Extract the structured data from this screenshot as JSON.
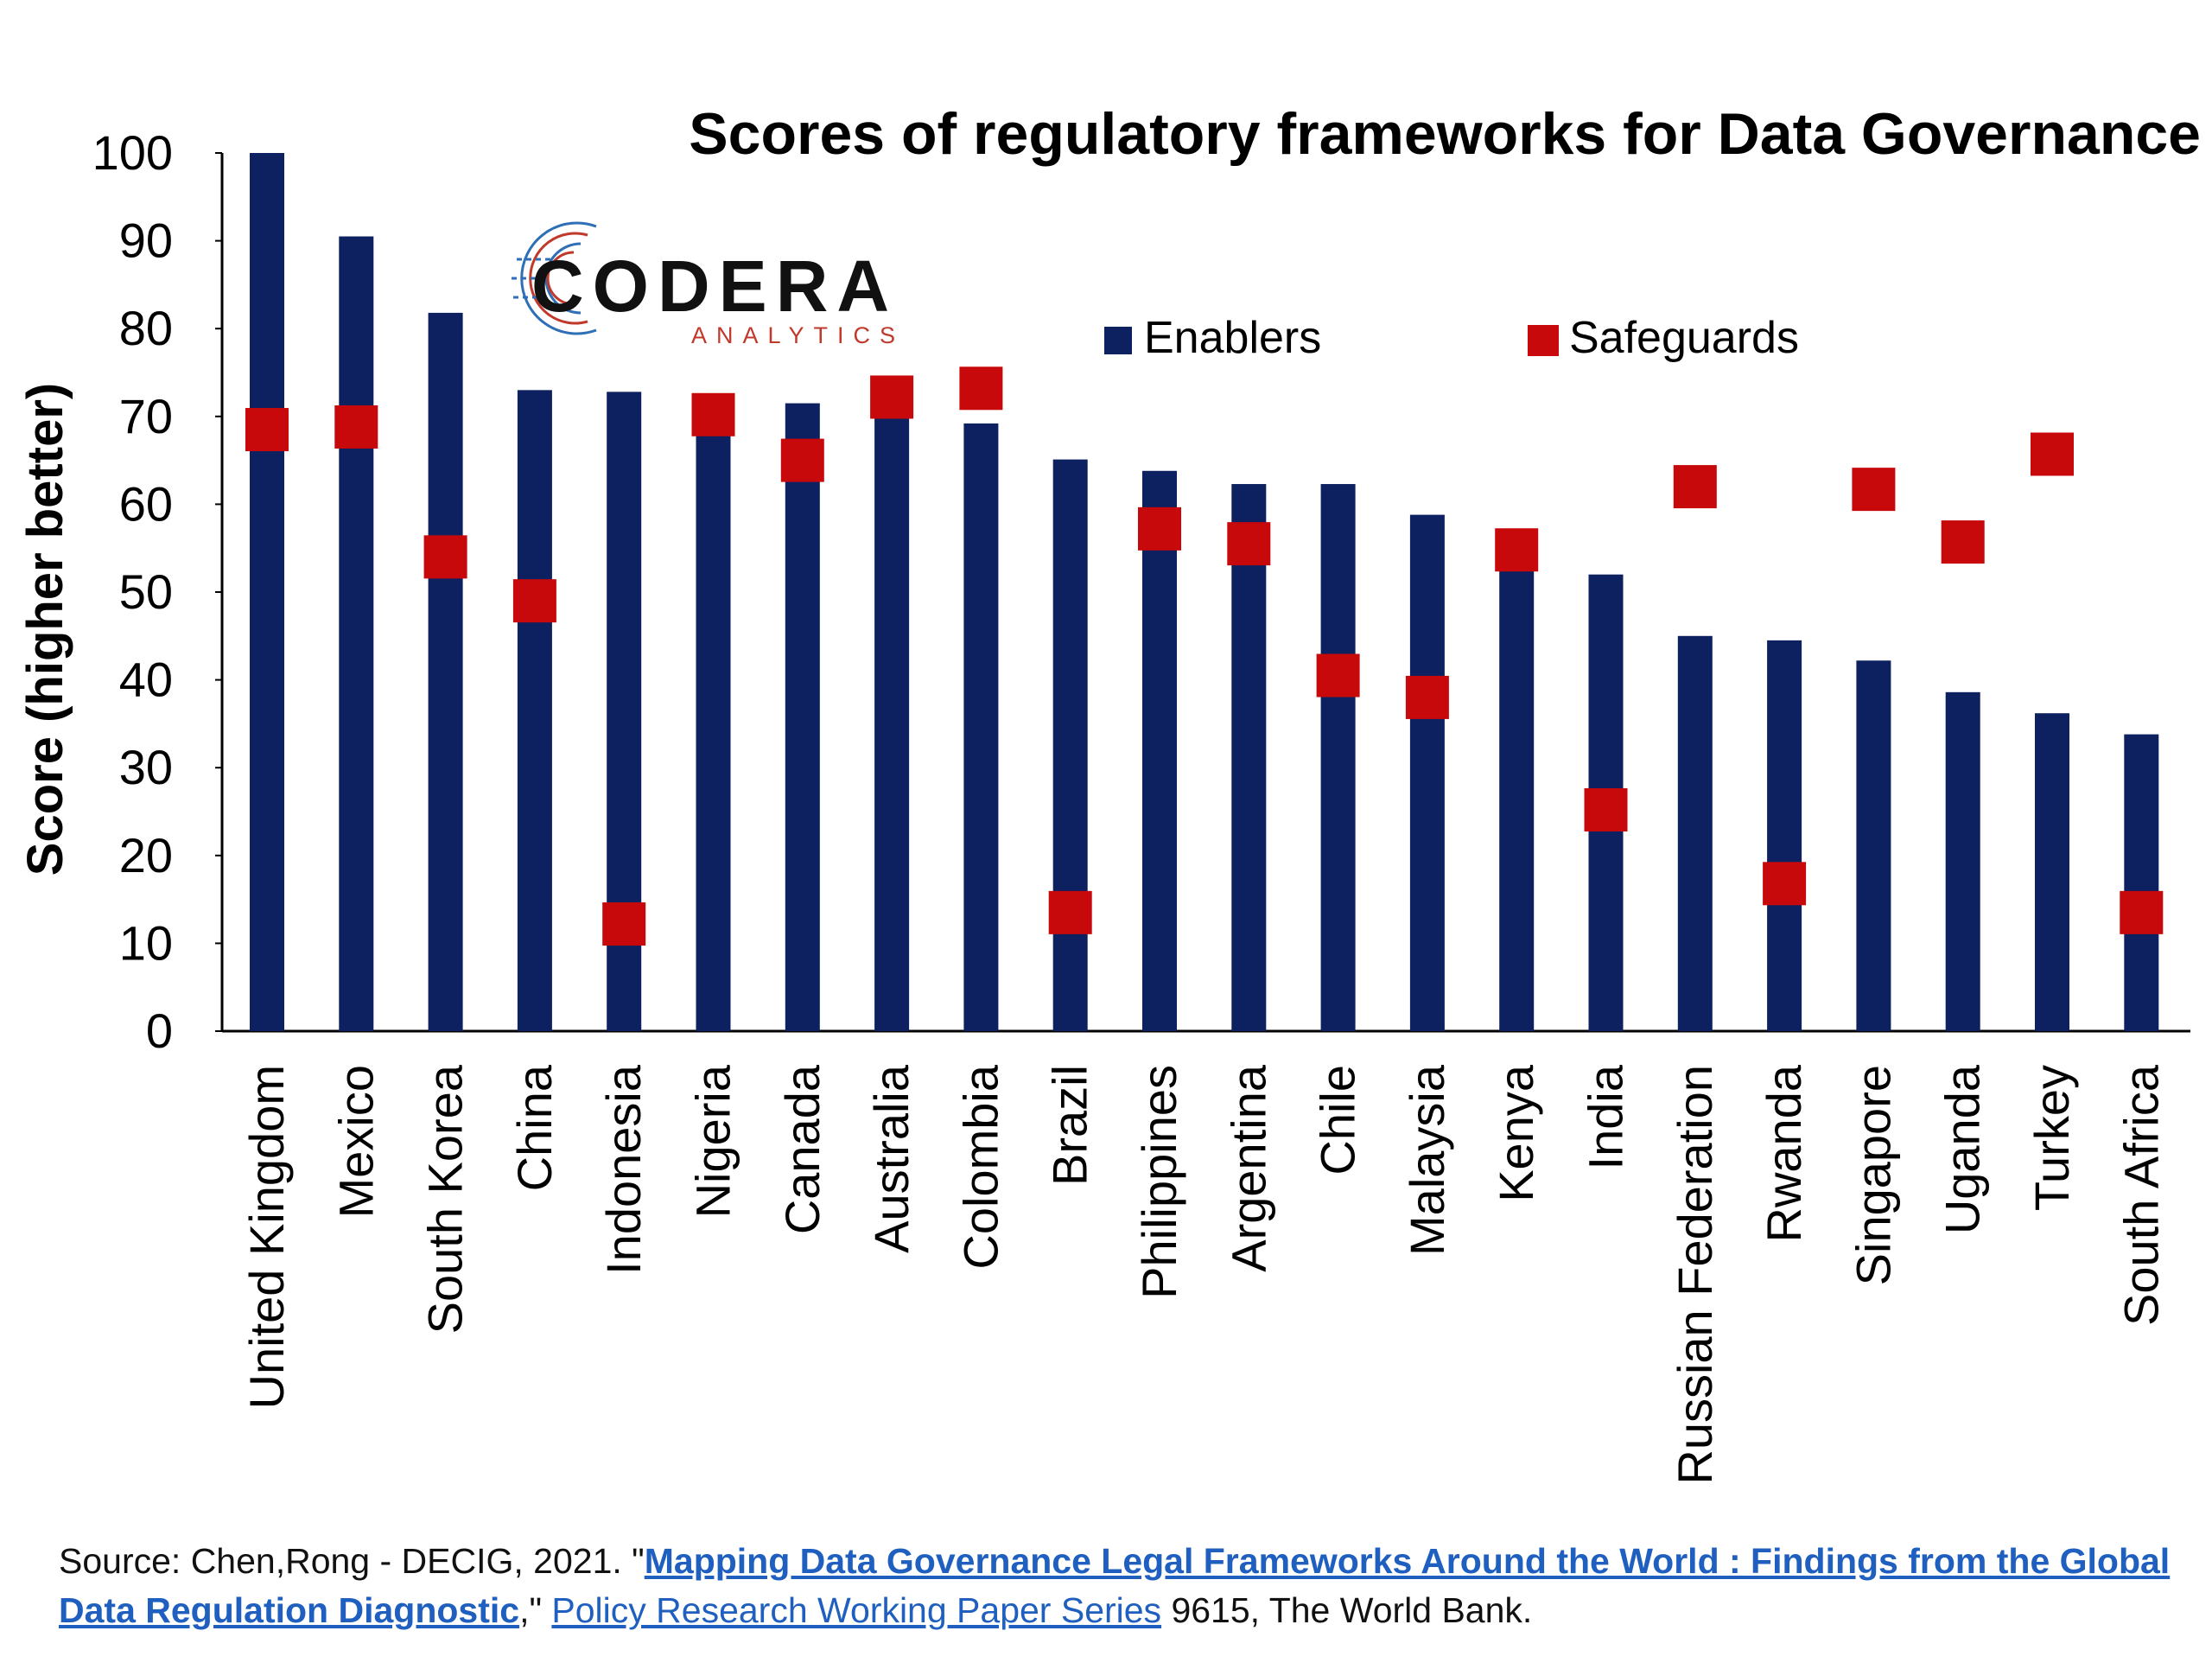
{
  "chart_data": {
    "type": "bar",
    "title": "Scores of regulatory frameworks for Data Governance",
    "ylabel": "Score (higher better)",
    "xlabel": "",
    "ylim": [
      0,
      100
    ],
    "yticks": [
      0,
      10,
      20,
      30,
      40,
      50,
      60,
      70,
      80,
      90,
      100
    ],
    "grid": false,
    "legend_position": "top-right",
    "categories": [
      "United Kingdom",
      "Mexico",
      "South Korea",
      "China",
      "Indonesia",
      "Nigeria",
      "Canada",
      "Australia",
      "Colombia",
      "Brazil",
      "Philippines",
      "Argentina",
      "Chile",
      "Malaysia",
      "Kenya",
      "India",
      "Russian Federation",
      "Rwanda",
      "Singapore",
      "Uganda",
      "Turkey",
      "South Africa"
    ],
    "series": [
      {
        "name": "Enablers",
        "kind": "bar",
        "color": "#0d2060",
        "values": [
          100,
          90.5,
          81.8,
          73,
          72.8,
          70,
          71.5,
          72,
          69.2,
          65.1,
          63.8,
          62.3,
          62.3,
          58.8,
          53,
          52,
          45,
          44.5,
          42.2,
          38.6,
          36.2,
          33.8
        ]
      },
      {
        "name": "Safeguards",
        "kind": "marker",
        "color": "#c8090b",
        "values": [
          68.5,
          68.8,
          54,
          49,
          12.2,
          70.2,
          65,
          72.2,
          73.2,
          13.5,
          57.2,
          55.5,
          40.5,
          38,
          54.8,
          25.2,
          62,
          16.8,
          61.7,
          55.7,
          65.7,
          13.5
        ]
      }
    ]
  },
  "logo": {
    "name": "CODERA",
    "subtitle": "ANALYTICS"
  },
  "source": {
    "prefix": "Source: Chen,Rong - DECIG, 2021. \"",
    "link1": "Mapping Data Governance Legal Frameworks Around the World : Findings from the Global Data Regulation Diagnostic",
    "mid": ",\" ",
    "link2": "Policy Research Working Paper Series",
    "suffix": " 9615, The World Bank."
  },
  "colors": {
    "enablers": "#0d2060",
    "safeguards": "#c8090b",
    "logo_red": "#c0392b",
    "logo_blue": "#2e6fb5",
    "link": "#1f5fbf"
  }
}
